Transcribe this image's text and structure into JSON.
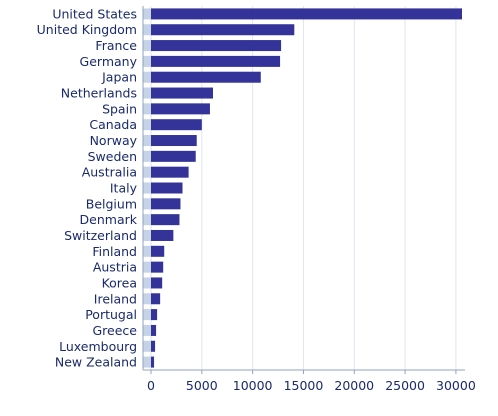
{
  "chart_data": {
    "type": "bar",
    "orientation": "horizontal",
    "categories": [
      "United States",
      "United Kingdom",
      "France",
      "Germany",
      "Japan",
      "Netherlands",
      "Spain",
      "Canada",
      "Norway",
      "Sweden",
      "Australia",
      "Italy",
      "Belgium",
      "Denmark",
      "Switzerland",
      "Finland",
      "Austria",
      "Korea",
      "Ireland",
      "Portugal",
      "Greece",
      "Luxembourg",
      "New Zealand"
    ],
    "values": [
      30600,
      14100,
      12800,
      12700,
      10800,
      6100,
      5800,
      5000,
      4500,
      4400,
      3700,
      3100,
      2900,
      2800,
      2200,
      1300,
      1200,
      1100,
      900,
      600,
      500,
      400,
      300
    ],
    "title": "",
    "xlabel": "",
    "ylabel": "",
    "xlim": [
      0,
      30600
    ],
    "xticks": [
      0,
      5000,
      10000,
      15000,
      20000,
      25000,
      30000
    ],
    "grid": true,
    "legend": "none",
    "colors": {
      "bar": "#33339a",
      "bar_track": "#c6d2e6",
      "grid": "#dde6f2",
      "axis": "#8fa3c4",
      "label": "#1a2a6c"
    }
  }
}
